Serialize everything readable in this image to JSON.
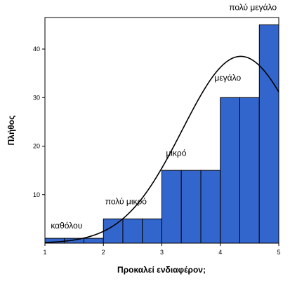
{
  "chart_data": {
    "type": "bar",
    "subtype": "histogram-with-normal-curve",
    "xlabel": "Προκαλεί ενδιαφέρον;",
    "ylabel": "Πλήθος",
    "xlim": [
      1,
      5
    ],
    "ylim": [
      0,
      46.5
    ],
    "x_ticks": [
      "1",
      "2",
      "3",
      "4",
      "5"
    ],
    "y_ticks": [
      "10",
      "20",
      "30",
      "40"
    ],
    "bin_width": 0.333,
    "bins": [
      {
        "start": 1.0,
        "end": 1.333,
        "count": 1
      },
      {
        "start": 1.333,
        "end": 1.667,
        "count": 1
      },
      {
        "start": 1.667,
        "end": 2.0,
        "count": 1
      },
      {
        "start": 2.0,
        "end": 2.333,
        "count": 5
      },
      {
        "start": 2.333,
        "end": 2.667,
        "count": 5
      },
      {
        "start": 2.667,
        "end": 3.0,
        "count": 5
      },
      {
        "start": 3.0,
        "end": 3.333,
        "count": 15
      },
      {
        "start": 3.333,
        "end": 3.667,
        "count": 15
      },
      {
        "start": 3.667,
        "end": 4.0,
        "count": 15
      },
      {
        "start": 4.0,
        "end": 4.333,
        "count": 30
      },
      {
        "start": 4.333,
        "end": 4.667,
        "count": 30
      },
      {
        "start": 4.667,
        "end": 5.0,
        "count": 45
      }
    ],
    "normal_curve": {
      "mean": 4.35,
      "sd": 1.0,
      "peak": 38.5
    },
    "annotations": [
      {
        "text": "καθόλου",
        "x": 1.1,
        "y": 3
      },
      {
        "text": "πολύ μικρό",
        "x": 2.03,
        "y": 8
      },
      {
        "text": "μικρό",
        "x": 3.07,
        "y": 18
      },
      {
        "text": "μεγάλο",
        "x": 3.9,
        "y": 33.5
      },
      {
        "text": "πολύ μεγάλο",
        "x": 4.15,
        "y": 48
      }
    ],
    "colors": {
      "bar_fill": "#3366CC",
      "bar_stroke": "#000000",
      "curve": "#000000",
      "plot_bg": "#FFFFFF"
    },
    "grid": false,
    "legend": "none"
  }
}
